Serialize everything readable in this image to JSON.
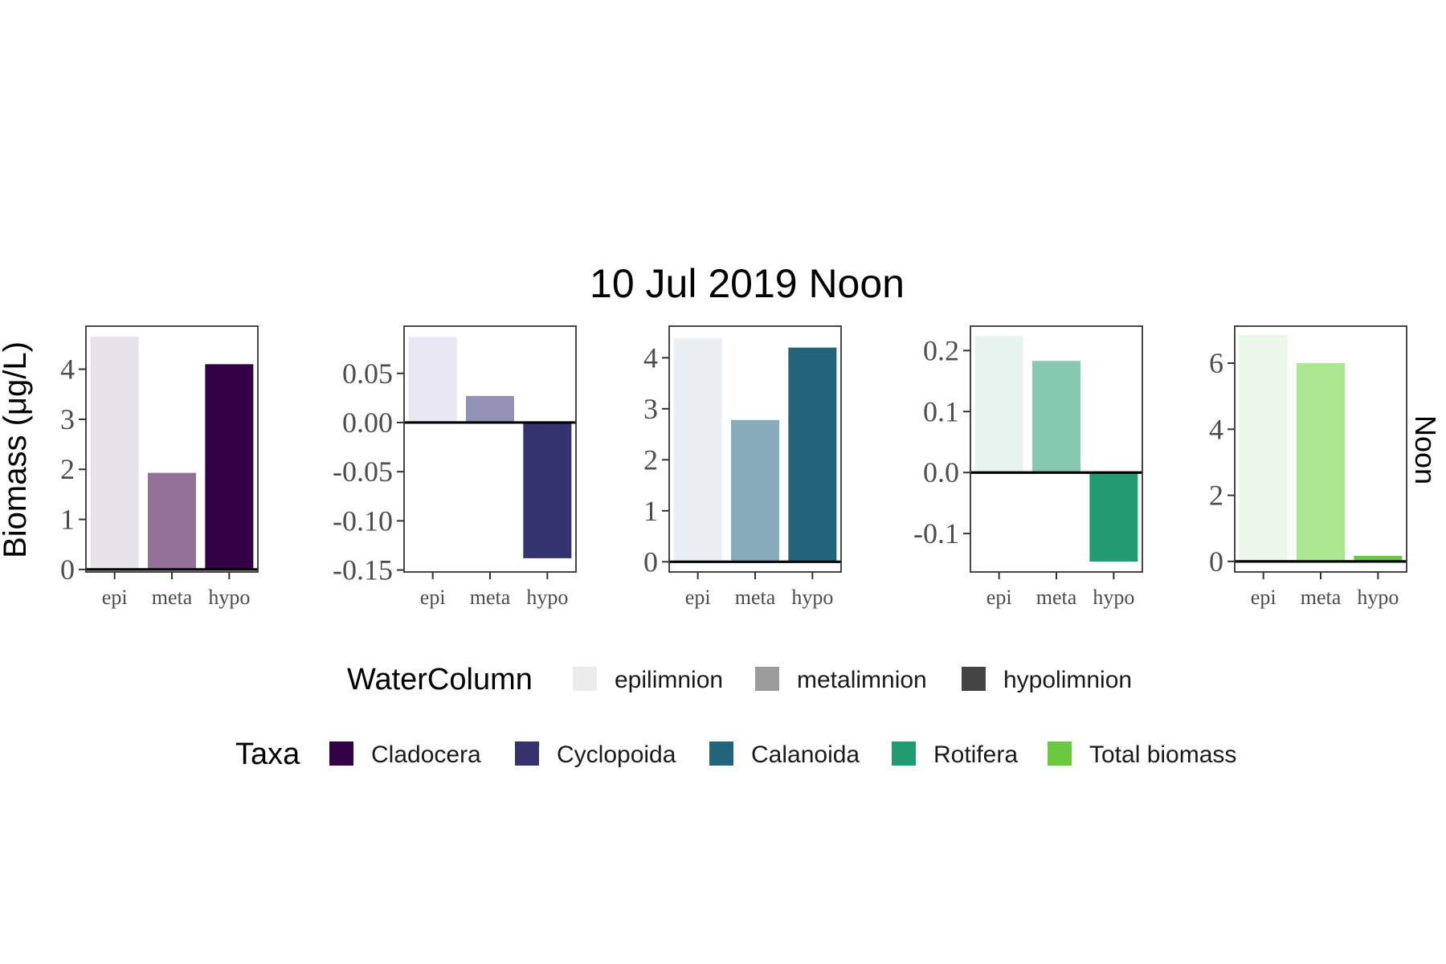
{
  "chart_data": {
    "type": "bar",
    "title": "10 Jul 2019 Noon",
    "ylabel": "Biomass (μg/L)",
    "facet_label": "Noon",
    "categories": [
      "epi",
      "meta",
      "hypo"
    ],
    "panels": [
      {
        "taxon": "Cladocera",
        "values": [
          4.65,
          1.93,
          4.1
        ],
        "ylim": [
          -0.05,
          4.86
        ],
        "yticks": [
          0,
          1,
          2,
          3,
          4
        ],
        "ytick_labels": [
          "0",
          "1",
          "2",
          "3",
          "4"
        ],
        "colors": [
          "#e8e2ea",
          "#927299",
          "#320044"
        ]
      },
      {
        "taxon": "Cyclopoida",
        "values": [
          0.087,
          0.027,
          -0.138
        ],
        "ylim": [
          -0.152,
          0.098
        ],
        "yticks": [
          0.05,
          0.0,
          -0.05,
          -0.1,
          -0.15
        ],
        "ytick_labels": [
          "0.05",
          "0.00",
          "-0.05",
          "-0.10",
          "-0.15"
        ],
        "colors": [
          "#e9e8f2",
          "#9391b6",
          "#34326f"
        ]
      },
      {
        "taxon": "Calanoida",
        "values": [
          4.38,
          2.78,
          4.2
        ],
        "ylim": [
          -0.2,
          4.62
        ],
        "yticks": [
          0,
          1,
          2,
          3,
          4
        ],
        "ytick_labels": [
          "0",
          "1",
          "2",
          "3",
          "4"
        ],
        "colors": [
          "#e8eef1",
          "#87acba",
          "#22657b"
        ]
      },
      {
        "taxon": "Rotifera",
        "values": [
          0.224,
          0.183,
          -0.146
        ],
        "ylim": [
          -0.163,
          0.24
        ],
        "yticks": [
          0.2,
          0.1,
          0.0,
          -0.1
        ],
        "ytick_labels": [
          "0.2",
          "0.1",
          "0.0",
          "-0.1"
        ],
        "colors": [
          "#e8f4ef",
          "#87c8b0",
          "#229a72"
        ]
      },
      {
        "taxon": "Total biomass",
        "values": [
          6.85,
          6.0,
          0.17
        ],
        "ylim": [
          -0.32,
          7.12
        ],
        "yticks": [
          0,
          2,
          4,
          6
        ],
        "ytick_labels": [
          "0",
          "2",
          "4",
          "6"
        ],
        "colors": [
          "#ebf7e8",
          "#ade690",
          "#6ac93f"
        ]
      }
    ],
    "legends": {
      "water_column": {
        "title": "WaterColumn",
        "items": [
          {
            "label": "epilimnion",
            "color": "#ebebeb"
          },
          {
            "label": "metalimnion",
            "color": "#9b9b9b"
          },
          {
            "label": "hypolimnion",
            "color": "#444444"
          }
        ]
      },
      "taxa": {
        "title": "Taxa",
        "items": [
          {
            "label": "Cladocera",
            "color": "#320044"
          },
          {
            "label": "Cyclopoida",
            "color": "#34326f"
          },
          {
            "label": "Calanoida",
            "color": "#22657b"
          },
          {
            "label": "Rotifera",
            "color": "#229a72"
          },
          {
            "label": "Total biomass",
            "color": "#6ac93f"
          }
        ]
      },
      "placement": "bottom"
    },
    "grid": false
  }
}
